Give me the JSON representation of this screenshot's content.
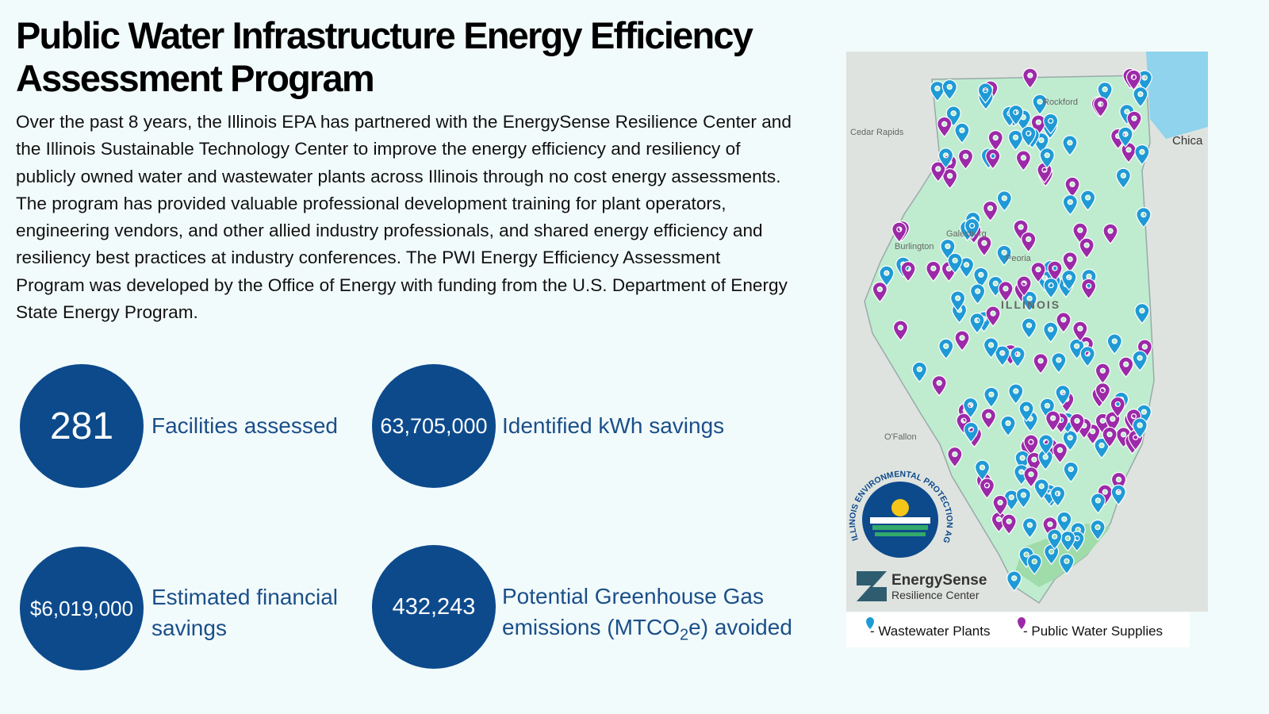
{
  "header": {
    "title": "Public Water Infrastructure Energy Efficiency Assessment Program",
    "body": "Over the past 8 years, the Illinois EPA has partnered with the EnergySense Resilience Center and the Illinois Sustainable Technology Center to improve the energy efficiency and resiliency of publicly owned water and wastewater plants across Illinois through no cost energy assessments. The program has provided valuable professional development training for plant operators, engineering vendors, and other allied industry professionals, and shared energy efficiency and resiliency best practices at industry conferences. The PWI Energy Efficiency Assessment Program was developed by the Office of Energy with funding from the U.S. Department of Energy State Energy Program."
  },
  "stats": [
    {
      "value": "281",
      "label": "Facilities assessed"
    },
    {
      "value": "63,705,000",
      "label": "Identified kWh savings"
    },
    {
      "value": "$6,019,000",
      "label": "Estimated financial savings"
    },
    {
      "value": "432,243",
      "label_parts": [
        "Potential Greenhouse Gas emissions (MTCO",
        "2",
        "e) avoided"
      ]
    }
  ],
  "map": {
    "places": [
      "Cedar Rapids",
      "Rockford",
      "Galesburg",
      "Burlington",
      "Peoria",
      "ILLINOIS",
      "O'Fallon",
      "Chica"
    ],
    "logo": {
      "agency": "ILLINOIS ENVIRONMENTAL PROTECTION AGENCY",
      "brand": "EnergySense",
      "brand_sub": "Resilience Center"
    },
    "legend": [
      "- Wastewater Plants",
      "- Public Water Supplies"
    ]
  }
}
